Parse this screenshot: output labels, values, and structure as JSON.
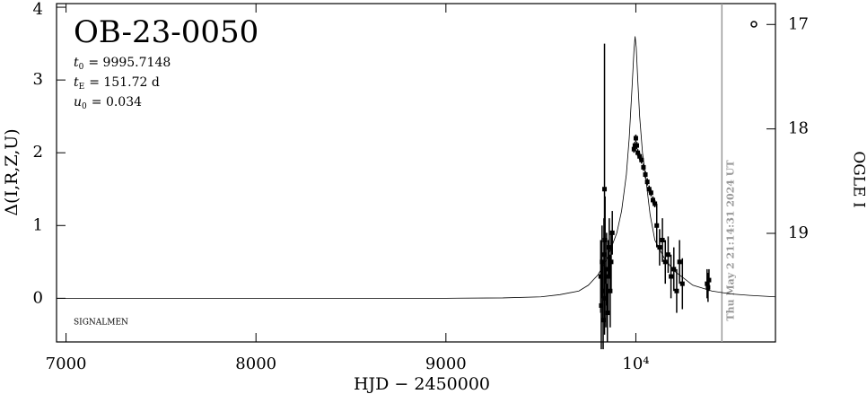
{
  "chart_data": {
    "type": "scatter",
    "title": "OB-23-0050",
    "parameters": [
      {
        "symbol": "t",
        "sub": "0",
        "text": "= 9995.7148"
      },
      {
        "symbol": "t",
        "sub": "E",
        "text": "= 151.72 d"
      },
      {
        "symbol": "u",
        "sub": "0",
        "text": "= 0.034"
      }
    ],
    "footnote": "SIGNALMEN",
    "x_label": "HJD − 2450000",
    "y_label": "Δ(I,R,Z,U)",
    "y2_label": "OGLE I",
    "xlim": [
      6950,
      10735
    ],
    "xticks": [
      7000,
      8000,
      9000,
      {
        "value": 10000,
        "label": "10⁴"
      }
    ],
    "ylim": [
      -0.6,
      4.05
    ],
    "yticks": [
      0,
      1,
      2,
      3,
      4
    ],
    "y2lim": [
      20.04,
      16.8
    ],
    "y2ticks": [
      17,
      18,
      19
    ],
    "now_line": {
      "x": 10453,
      "label": "Thu May  2 21:14:31 2024 UT",
      "color": "#999999"
    },
    "color": "#000000",
    "x": [
      9815,
      9818,
      9822,
      9825,
      9828,
      9832,
      9835,
      9838,
      9842,
      9846,
      9850,
      9855,
      9860,
      9865,
      9870,
      9876,
      9990,
      9995,
      10000,
      10005,
      10010,
      10020,
      10030,
      10040,
      10050,
      10060,
      10070,
      10080,
      10090,
      10100,
      10110,
      10125,
      10140,
      10155,
      10170,
      10185,
      10200,
      10215,
      10230,
      10245,
      10375,
      10380,
      10385
    ],
    "values": [
      0.3,
      -0.1,
      0.5,
      0.1,
      -0.3,
      0.6,
      1.5,
      0.8,
      0.0,
      0.4,
      -0.2,
      0.3,
      0.7,
      0.1,
      0.5,
      0.9,
      2.05,
      2.1,
      2.2,
      2.1,
      2.0,
      1.95,
      1.9,
      1.8,
      1.7,
      1.6,
      1.5,
      1.45,
      1.35,
      1.3,
      1.0,
      0.7,
      0.8,
      0.5,
      0.6,
      0.3,
      0.4,
      0.1,
      0.5,
      0.2,
      0.2,
      0.15,
      0.25
    ],
    "errors": [
      0.5,
      0.6,
      0.5,
      0.4,
      0.4,
      0.5,
      2.0,
      0.6,
      0.4,
      0.5,
      0.4,
      0.5,
      0.4,
      0.5,
      0.4,
      0.3,
      0.05,
      0.05,
      0.05,
      0.05,
      0.05,
      0.05,
      0.05,
      0.05,
      0.05,
      0.05,
      0.05,
      0.05,
      0.05,
      0.05,
      0.3,
      0.25,
      0.3,
      0.3,
      0.25,
      0.3,
      0.3,
      0.3,
      0.3,
      0.35,
      0.2,
      0.2,
      0.15
    ],
    "model": {
      "type": "line",
      "x": [
        6950,
        7500,
        8000,
        8500,
        9000,
        9300,
        9500,
        9600,
        9700,
        9750,
        9800,
        9850,
        9900,
        9925,
        9950,
        9965,
        9980,
        9990,
        9996,
        10002,
        10010,
        10020,
        10035,
        10050,
        10075,
        10100,
        10150,
        10200,
        10300,
        10400,
        10500,
        10600,
        10735
      ],
      "values": [
        0,
        0,
        0,
        0,
        0,
        0.005,
        0.02,
        0.05,
        0.1,
        0.18,
        0.32,
        0.55,
        0.9,
        1.2,
        1.7,
        2.2,
        2.9,
        3.4,
        3.6,
        3.45,
        3.0,
        2.5,
        2.0,
        1.7,
        1.15,
        0.8,
        0.55,
        0.38,
        0.18,
        0.1,
        0.06,
        0.04,
        0.02
      ]
    }
  }
}
